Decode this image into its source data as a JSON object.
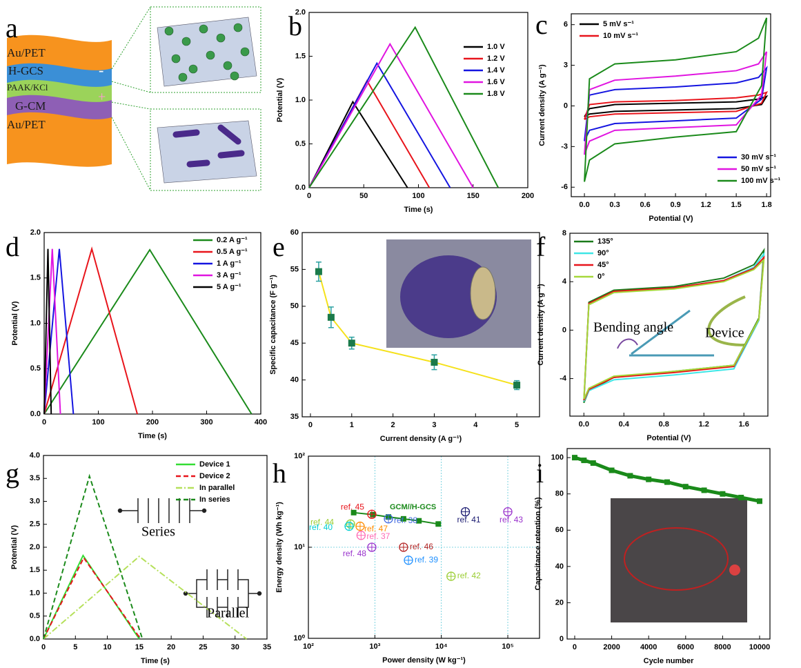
{
  "schematic": {
    "label": "a",
    "layers": [
      "Au/PET",
      "H-GCS",
      "PAAK/KCl",
      "G-CM",
      "Au/PET"
    ],
    "minus": "-",
    "plus": "+"
  },
  "chart_data": [
    {
      "type": "line",
      "label": "b",
      "xlabel": "Time (s)",
      "ylabel": "Potential (V)",
      "xlim": [
        0,
        200
      ],
      "xticks": [
        0,
        50,
        100,
        150,
        200
      ],
      "ylim": [
        0,
        2.0
      ],
      "yticks": [
        {
          "value": 0,
          "label": "0.0"
        },
        0.5,
        {
          "value": 1,
          "label": "1.0"
        },
        1.5,
        {
          "value": 2,
          "label": "2.0"
        }
      ],
      "series": [
        {
          "name": "1.0 V",
          "color": "#000000",
          "x": [
            0,
            40,
            90
          ],
          "values": [
            0,
            0.98,
            0
          ]
        },
        {
          "name": "1.2 V",
          "color": "#e8141b",
          "x": [
            0,
            53,
            110
          ],
          "values": [
            0,
            1.22,
            0
          ]
        },
        {
          "name": "1.4 V",
          "color": "#1414e0",
          "x": [
            0,
            62,
            129
          ],
          "values": [
            0,
            1.42,
            0
          ]
        },
        {
          "name": "1.6 V",
          "color": "#e014e0",
          "x": [
            0,
            74,
            150
          ],
          "values": [
            0,
            1.64,
            0
          ]
        },
        {
          "name": "1.8 V",
          "color": "#1a8a1a",
          "x": [
            0,
            97,
            173
          ],
          "values": [
            0,
            1.83,
            0
          ]
        }
      ]
    },
    {
      "type": "line",
      "label": "c",
      "xlabel": "Potential (V)",
      "ylabel": "Current density (A g⁻¹)",
      "xlim": [
        -0.13,
        1.84
      ],
      "xticks": [
        {
          "value": 0,
          "label": "0.0"
        },
        0.3,
        0.6,
        0.9,
        1.2,
        1.5,
        1.8
      ],
      "ylim": [
        -6.7,
        6.8
      ],
      "yticks": [
        -6,
        -3,
        0,
        3,
        6
      ],
      "series": [
        {
          "name": "5 mV s⁻¹",
          "color": "#000000",
          "x": [
            0,
            0.05,
            0.3,
            0.9,
            1.5,
            1.72,
            1.8,
            1.75,
            1.5,
            0.9,
            0.3,
            0.05,
            0
          ],
          "values": [
            -0.8,
            -0.2,
            0.1,
            0.2,
            0.3,
            0.5,
            0.7,
            0.1,
            -0.2,
            -0.3,
            -0.4,
            -0.6,
            -0.8
          ]
        },
        {
          "name": "10 mV s⁻¹",
          "color": "#e8141b",
          "x": [
            0,
            0.05,
            0.3,
            0.9,
            1.5,
            1.72,
            1.8,
            1.75,
            1.5,
            0.9,
            0.3,
            0.05,
            0
          ],
          "values": [
            -1.0,
            0.1,
            0.3,
            0.4,
            0.6,
            0.8,
            1.0,
            0.2,
            -0.4,
            -0.5,
            -0.6,
            -0.8,
            -1.0
          ]
        },
        {
          "name": "30 mV s⁻¹",
          "color": "#1414e0",
          "x": [
            0,
            0.05,
            0.3,
            0.9,
            1.5,
            1.72,
            1.8,
            1.75,
            1.5,
            0.9,
            0.3,
            0.05,
            0
          ],
          "values": [
            -2.6,
            0.8,
            1.2,
            1.4,
            1.7,
            2.1,
            2.8,
            0.5,
            -0.9,
            -1.1,
            -1.3,
            -1.8,
            -2.6
          ]
        },
        {
          "name": "50 mV s⁻¹",
          "color": "#e014e0",
          "x": [
            0,
            0.05,
            0.3,
            0.9,
            1.5,
            1.72,
            1.8,
            1.75,
            1.5,
            0.9,
            0.3,
            0.05,
            0
          ],
          "values": [
            -3.6,
            1.2,
            1.9,
            2.2,
            2.6,
            3.1,
            4.0,
            0.8,
            -1.4,
            -1.6,
            -1.8,
            -2.6,
            -3.6
          ]
        },
        {
          "name": "100 mV s⁻¹",
          "color": "#1a8a1a",
          "x": [
            0,
            0.05,
            0.3,
            0.9,
            1.5,
            1.72,
            1.8,
            1.75,
            1.5,
            0.9,
            0.3,
            0.05,
            0
          ],
          "values": [
            -5.6,
            2.0,
            3.1,
            3.4,
            4.0,
            5.0,
            6.5,
            1.5,
            -1.9,
            -2.3,
            -2.8,
            -4.0,
            -5.6
          ]
        }
      ]
    },
    {
      "type": "line",
      "label": "d",
      "xlabel": "Time (s)",
      "ylabel": "Potential (V)",
      "xlim": [
        0,
        400
      ],
      "xticks": [
        0,
        100,
        200,
        300,
        400
      ],
      "ylim": [
        0,
        2.0
      ],
      "yticks": [
        {
          "value": 0,
          "label": "0.0"
        },
        0.5,
        {
          "value": 1,
          "label": "1.0"
        },
        1.5,
        {
          "value": 2,
          "label": "2.0"
        }
      ],
      "series": [
        {
          "name": "0.2 A g⁻¹",
          "color": "#1a8a1a",
          "x": [
            0,
            195,
            383
          ],
          "values": [
            0,
            1.81,
            0
          ]
        },
        {
          "name": "0.5 A g⁻¹",
          "color": "#e8141b",
          "x": [
            0,
            88,
            172
          ],
          "values": [
            0,
            1.82,
            0
          ]
        },
        {
          "name": "1 A g⁻¹",
          "color": "#1414e0",
          "x": [
            0,
            28,
            54
          ],
          "values": [
            0,
            1.82,
            0
          ]
        },
        {
          "name": "3 A g⁻¹",
          "color": "#e014e0",
          "x": [
            0,
            15,
            30
          ],
          "values": [
            0,
            1.82,
            0
          ]
        },
        {
          "name": "5 A g⁻¹",
          "color": "#000000",
          "x": [
            0,
            7,
            13
          ],
          "values": [
            0,
            1.82,
            0
          ]
        }
      ]
    },
    {
      "type": "scatter",
      "label": "e",
      "xlabel": "Current density (A g⁻¹)",
      "ylabel": "Specific capacitance (F g⁻¹)",
      "xlim": [
        -0.2,
        5.55
      ],
      "xticks": [
        0,
        1,
        2,
        3,
        4,
        5
      ],
      "ylim": [
        35,
        60
      ],
      "yticks": [
        35,
        40,
        45,
        50,
        55,
        60
      ],
      "x": [
        0.2,
        0.5,
        1,
        3,
        5
      ],
      "values": [
        54.7,
        48.5,
        45.0,
        42.4,
        39.3
      ],
      "errors": [
        1.3,
        1.4,
        0.8,
        1.0,
        0.6
      ],
      "color": "#1a7a4a",
      "line_color": "#f5e11a",
      "error_color": "#2aa0a0"
    },
    {
      "type": "line",
      "label": "f",
      "xlabel": "Potential (V)",
      "ylabel": "Current density (A g⁻¹)",
      "xlim": [
        -0.14,
        1.84
      ],
      "xticks": [
        {
          "value": 0,
          "label": "0.0"
        },
        0.4,
        0.8,
        1.2,
        1.6
      ],
      "ylim": [
        -7.1,
        8
      ],
      "yticks": [
        -4,
        0,
        4,
        8
      ],
      "annotations": [
        "Bending angle",
        "Device"
      ],
      "series": [
        {
          "name": "135°",
          "color": "#1a7a1a",
          "x": [
            0,
            0.05,
            0.3,
            0.9,
            1.4,
            1.7,
            1.8,
            1.75,
            1.5,
            0.9,
            0.3,
            0.05,
            0
          ],
          "values": [
            -6.0,
            2.3,
            3.3,
            3.6,
            4.3,
            5.4,
            6.6,
            1.0,
            -2.9,
            -3.4,
            -3.9,
            -5.0,
            -6.0
          ]
        },
        {
          "name": "90°",
          "color": "#3ee6e6",
          "x": [
            0,
            0.05,
            0.3,
            0.9,
            1.4,
            1.7,
            1.8,
            1.75,
            1.5,
            0.9,
            0.3,
            0.05,
            0
          ],
          "values": [
            -5.9,
            2.1,
            3.1,
            3.5,
            4.1,
            5.2,
            6.3,
            0.8,
            -3.2,
            -3.7,
            -4.1,
            -5.0,
            -5.9
          ]
        },
        {
          "name": "45°",
          "color": "#e8141b",
          "x": [
            0,
            0.05,
            0.3,
            0.9,
            1.4,
            1.7,
            1.8,
            1.75,
            1.5,
            0.9,
            0.3,
            0.05,
            0
          ],
          "values": [
            -5.8,
            2.2,
            3.2,
            3.5,
            4.1,
            5.1,
            6.0,
            0.9,
            -3.0,
            -3.5,
            -3.9,
            -4.9,
            -5.8
          ]
        },
        {
          "name": "0°",
          "color": "#a6d83a",
          "x": [
            0,
            0.05,
            0.3,
            0.9,
            1.4,
            1.7,
            1.8,
            1.75,
            1.5,
            0.9,
            0.3,
            0.05,
            0
          ],
          "values": [
            -5.7,
            2.1,
            3.1,
            3.4,
            4.0,
            5.0,
            5.8,
            0.9,
            -2.9,
            -3.4,
            -3.8,
            -4.8,
            -5.7
          ]
        }
      ]
    },
    {
      "type": "line",
      "label": "g",
      "xlabel": "Time (s)",
      "ylabel": "Potential (V)",
      "xlim": [
        0,
        35
      ],
      "xticks": [
        0,
        5,
        10,
        15,
        20,
        25,
        30,
        35
      ],
      "ylim": [
        0,
        4.0
      ],
      "yticks": [
        {
          "value": 0,
          "label": "0.0"
        },
        0.5,
        {
          "value": 1,
          "label": "1.0"
        },
        1.5,
        {
          "value": 2,
          "label": "2.0"
        },
        2.5,
        {
          "value": 3,
          "label": "3.0"
        },
        3.5,
        {
          "value": 4,
          "label": "4.0"
        }
      ],
      "annotations": [
        "Series",
        "Parallel"
      ],
      "series": [
        {
          "name": "Device 1",
          "color": "#33dd33",
          "dash": "solid",
          "x": [
            0,
            6.2,
            15
          ],
          "values": [
            0,
            1.82,
            0
          ]
        },
        {
          "name": "Device 2",
          "color": "#e8141b",
          "dash": "dashed",
          "x": [
            0,
            6.3,
            15.2
          ],
          "values": [
            0,
            1.77,
            0
          ]
        },
        {
          "name": "In parallel",
          "color": "#b5e05a",
          "dash": "dashdot",
          "x": [
            0,
            15,
            31.8
          ],
          "values": [
            0,
            1.8,
            0
          ]
        },
        {
          "name": "In series",
          "color": "#1a8a1a",
          "dash": "dashed",
          "x": [
            0,
            7.2,
            15.5
          ],
          "values": [
            0,
            3.55,
            0
          ]
        }
      ]
    },
    {
      "type": "scatter",
      "label": "h",
      "xlabel": "Power density (W kg⁻¹)",
      "ylabel": "Energy density (Wh kg⁻¹)",
      "xscale": "log",
      "yscale": "log",
      "grid": true,
      "xlim": [
        100,
        300000
      ],
      "xticks": [
        {
          "value": 100,
          "label": "10²"
        },
        {
          "value": 1000,
          "label": "10³"
        },
        {
          "value": 10000,
          "label": "10⁴"
        },
        {
          "value": 100000,
          "label": "10⁵"
        }
      ],
      "ylim": [
        1,
        100
      ],
      "yticks": [
        {
          "value": 1,
          "label": "10⁰"
        },
        {
          "value": 10,
          "label": "10¹"
        },
        {
          "value": 100,
          "label": "10²"
        }
      ],
      "series": [
        {
          "name": "GCM//H-GCS",
          "color": "#1a8a1a",
          "x": [
            480,
            930,
            1600,
            2700,
            4600,
            9000
          ],
          "values": [
            24,
            22.8,
            21.5,
            20.5,
            19.5,
            18
          ]
        }
      ],
      "points": [
        {
          "name": "ref. 45",
          "x": 900,
          "y": 23,
          "color": "#e8141b"
        },
        {
          "name": "ref. 44",
          "x": 430,
          "y": 18,
          "color": "#9acd32"
        },
        {
          "name": "ref. 40",
          "x": 410,
          "y": 17,
          "color": "#00ced1"
        },
        {
          "name": "ref. 47",
          "x": 600,
          "y": 17,
          "color": "#ff8c00"
        },
        {
          "name": "ref. 37",
          "x": 620,
          "y": 13.5,
          "color": "#ff69b4"
        },
        {
          "name": "ref. 38",
          "x": 1600,
          "y": 20.5,
          "color": "#4169e1"
        },
        {
          "name": "ref. 48",
          "x": 900,
          "y": 10,
          "color": "#9932cc"
        },
        {
          "name": "ref. 46",
          "x": 2700,
          "y": 10,
          "color": "#b22222"
        },
        {
          "name": "ref. 39",
          "x": 3200,
          "y": 7.2,
          "color": "#1e90ff"
        },
        {
          "name": "ref. 41",
          "x": 23000,
          "y": 24.5,
          "color": "#191970"
        },
        {
          "name": "ref. 43",
          "x": 100000,
          "y": 24.5,
          "color": "#9932cc"
        },
        {
          "name": "ref. 42",
          "x": 14000,
          "y": 4.8,
          "color": "#9acd32"
        }
      ]
    },
    {
      "type": "line",
      "label": "i",
      "xlabel": "Cycle number",
      "ylabel": "Capacitance retention (%)",
      "xlim": [
        -410,
        10560
      ],
      "xticks": [
        0,
        2000,
        4000,
        6000,
        8000,
        10000
      ],
      "ylim": [
        0,
        105
      ],
      "yticks": [
        0,
        20,
        40,
        60,
        80,
        100
      ],
      "series": [
        {
          "name": "Capacitance retention",
          "color": "#1a8a1a",
          "x": [
            0,
            500,
            1000,
            2000,
            3000,
            4000,
            5000,
            6000,
            7000,
            8000,
            9000,
            10000
          ],
          "values": [
            100,
            98.5,
            97,
            93,
            90,
            88,
            86.5,
            84,
            82,
            80,
            78,
            76
          ]
        }
      ]
    }
  ]
}
